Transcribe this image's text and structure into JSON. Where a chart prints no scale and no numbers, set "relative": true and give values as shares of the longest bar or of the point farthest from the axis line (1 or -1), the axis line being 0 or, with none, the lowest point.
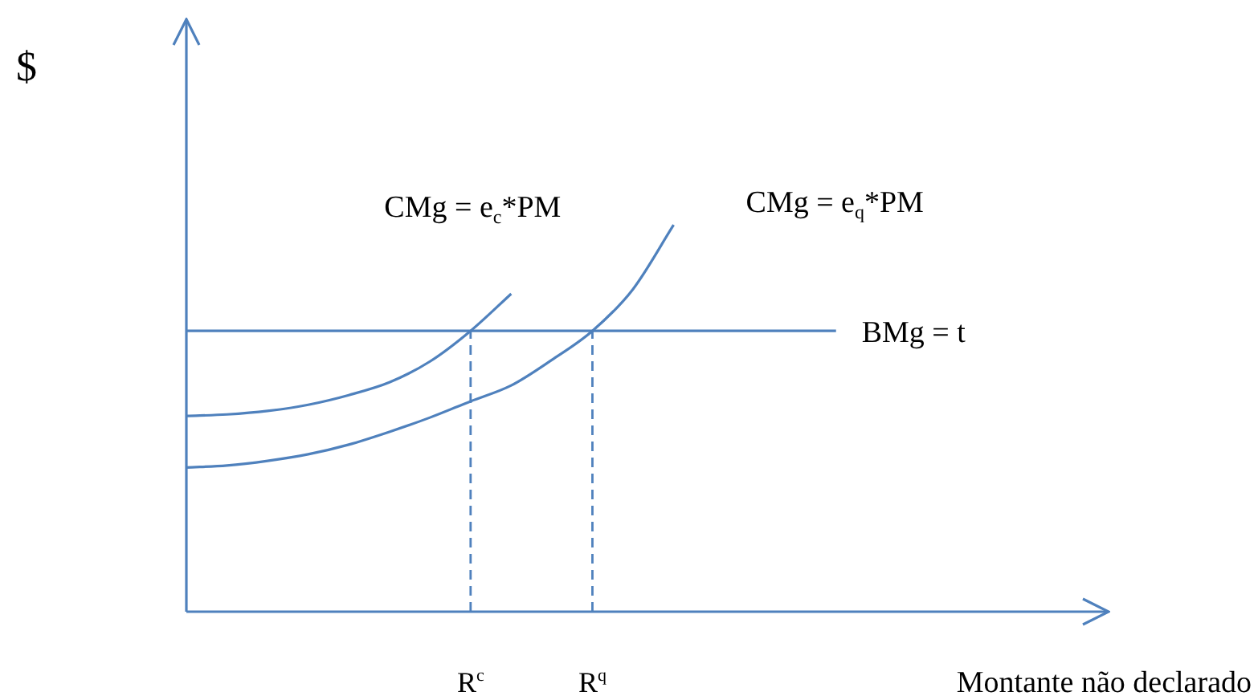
{
  "chart_data": {
    "type": "line",
    "relative": true,
    "ylabel": "$",
    "xlabel": "Montante não declarado",
    "tick_labels": "x",
    "categories": [
      null,
      null,
      null,
      null,
      null,
      null,
      null,
      "R$^{c}$",
      null,
      null,
      "R$^{q}$",
      null,
      null,
      null,
      null,
      null,
      null,
      null,
      null,
      null,
      null,
      null,
      null
    ],
    "series": [
      {
        "name": "CMg = e$_{c}$*PM",
        "color": "#4f81bd",
        "values": [
          0.506,
          0.51,
          0.519,
          0.535,
          0.56,
          0.593,
          0.647,
          0.726,
          0.822,
          null,
          null,
          null,
          null,
          null,
          null,
          null,
          null,
          null,
          null,
          null,
          null,
          null,
          null
        ]
      },
      {
        "name": "CMg = e$_{q}$*PM",
        "color": "#4f81bd",
        "values": [
          0.373,
          0.378,
          0.39,
          0.407,
          0.432,
          0.465,
          0.502,
          0.544,
          0.585,
          0.651,
          0.726,
          0.834,
          1,
          null,
          null,
          null,
          null,
          null,
          null,
          null,
          null,
          null,
          null
        ]
      },
      {
        "name": "BMg = t",
        "color": "#4f81bd",
        "values": [
          0.726,
          0.726,
          0.726,
          0.726,
          0.726,
          0.726,
          0.726,
          0.726,
          0.726,
          0.726,
          0.726,
          0.726,
          0.726,
          0.726,
          0.726,
          0.726,
          0.726,
          null,
          null,
          null,
          null,
          null,
          null
        ]
      }
    ],
    "ref_lines": [
      {
        "axis": "x",
        "value": "R$^{c}$",
        "line_style": "dashed",
        "color": "#4f81bd"
      },
      {
        "axis": "x",
        "value": "R$^{q}$",
        "line_style": "dashed",
        "color": "#4f81bd"
      }
    ]
  }
}
